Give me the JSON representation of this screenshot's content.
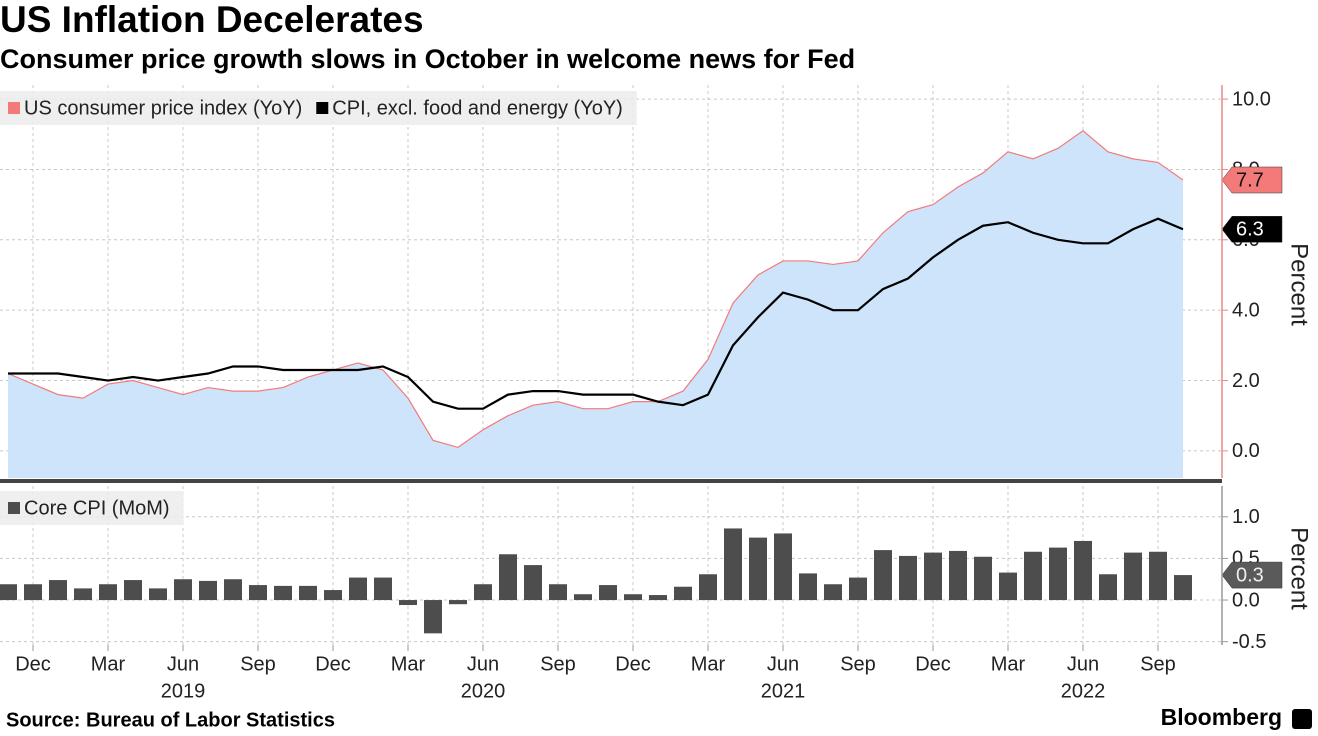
{
  "title": "US Inflation Decelerates",
  "subtitle": "Consumer price growth slows in October in welcome news for Fed",
  "source": "Source: Bureau of Labor Statistics",
  "brand": "Bloomberg",
  "chart_data": [
    {
      "type": "line",
      "y_label": "Percent",
      "grid": true,
      "ylim": [
        -0.77,
        10.4
      ],
      "yticks": [
        {
          "value": 0,
          "label": "0.0"
        },
        {
          "value": 2,
          "label": "2.0"
        },
        {
          "value": 4,
          "label": "4.0"
        },
        {
          "value": 6,
          "label": "6.0"
        },
        {
          "value": 8,
          "label": "8.0"
        },
        {
          "value": 10,
          "label": "10.0"
        }
      ],
      "series": [
        {
          "name": "US consumer price index (YoY)",
          "color": "#f47a7a",
          "fill": "#cde4fb",
          "values": [
            2.2,
            1.9,
            1.6,
            1.5,
            1.9,
            2.0,
            1.8,
            1.6,
            1.8,
            1.7,
            1.7,
            1.8,
            2.1,
            2.3,
            2.5,
            2.3,
            1.5,
            0.3,
            0.1,
            0.6,
            1.0,
            1.3,
            1.4,
            1.2,
            1.2,
            1.4,
            1.4,
            1.7,
            2.6,
            4.2,
            5.0,
            5.4,
            5.4,
            5.3,
            5.4,
            6.2,
            6.8,
            7.0,
            7.5,
            7.9,
            8.5,
            8.3,
            8.6,
            9.1,
            8.5,
            8.3,
            8.2,
            7.7
          ]
        },
        {
          "name": "CPI, excl. food and energy (YoY)",
          "color": "#000000",
          "values": [
            2.2,
            2.2,
            2.2,
            2.1,
            2.0,
            2.1,
            2.0,
            2.1,
            2.2,
            2.4,
            2.4,
            2.3,
            2.3,
            2.3,
            2.3,
            2.4,
            2.1,
            1.4,
            1.2,
            1.2,
            1.6,
            1.7,
            1.7,
            1.6,
            1.6,
            1.6,
            1.4,
            1.3,
            1.6,
            3.0,
            3.8,
            4.5,
            4.3,
            4.0,
            4.0,
            4.6,
            4.9,
            5.5,
            6.0,
            6.4,
            6.5,
            6.2,
            6.0,
            5.9,
            5.9,
            6.3,
            6.6,
            6.3
          ]
        }
      ]
    },
    {
      "type": "bar",
      "y_label": "Percent",
      "grid": true,
      "ylim": [
        -0.54,
        1.37
      ],
      "yticks": [
        {
          "value": -0.5,
          "label": "-0.5"
        },
        {
          "value": 0,
          "label": "0.0"
        },
        {
          "value": 0.5,
          "label": "0.5"
        },
        {
          "value": 1,
          "label": "1.0"
        }
      ],
      "categories": [
        null,
        "Dec",
        null,
        null,
        "Mar",
        null,
        null,
        "Jun",
        null,
        null,
        "Sep",
        null,
        null,
        "Dec",
        null,
        null,
        "Mar",
        null,
        null,
        "Jun",
        null,
        null,
        "Sep",
        null,
        null,
        "Dec",
        null,
        null,
        "Mar",
        null,
        null,
        "Jun",
        null,
        null,
        "Sep",
        null,
        null,
        "Dec",
        null,
        null,
        "Mar",
        null,
        null,
        "Jun",
        null,
        null,
        "Sep",
        null
      ],
      "category_groups": [
        "2019",
        "2020",
        "2021",
        "2022"
      ],
      "series": [
        {
          "name": "Core CPI (MoM)",
          "color": "#4d4d4d",
          "values": [
            0.19,
            0.19,
            0.24,
            0.14,
            0.19,
            0.24,
            0.14,
            0.25,
            0.23,
            0.25,
            0.18,
            0.17,
            0.17,
            0.12,
            0.27,
            0.27,
            -0.06,
            -0.4,
            -0.05,
            0.19,
            0.55,
            0.42,
            0.19,
            0.07,
            0.18,
            0.07,
            0.06,
            0.16,
            0.31,
            0.86,
            0.75,
            0.8,
            0.32,
            0.19,
            0.27,
            0.6,
            0.53,
            0.57,
            0.59,
            0.52,
            0.33,
            0.58,
            0.63,
            0.71,
            0.31,
            0.57,
            0.58,
            0.3
          ]
        }
      ]
    }
  ]
}
